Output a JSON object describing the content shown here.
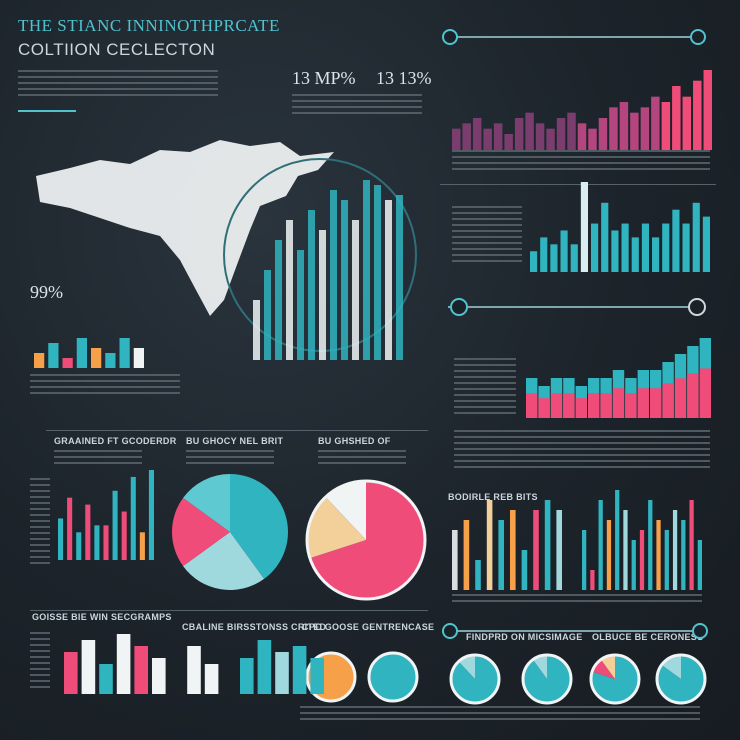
{
  "header": {
    "title_line1": "THE STIANC INNINOTHPRCATE",
    "title_line2": "COLTIION CECLECTON",
    "stat_left": "13 MP%",
    "stat_right": "13 13%",
    "stat_map": "99%"
  },
  "labels": {
    "mid_a": "GRAAINED FT GCODERDR",
    "mid_b": "BU GHOCY NEL BRIT",
    "mid_c": "BU GHSHED OF",
    "right_bars_title": "BODIRLE REB BITS",
    "bottom_a": "GOISSE BIE WIN SECGRAMPS",
    "bottom_b": "CBALINE BIRSSTONSS CRITED",
    "bottom_c": "CPC GOOSE GENTRENCASE",
    "bottom_d": "FINDPRD ON MICSIMAGE",
    "bottom_e": "OLBUCE BE CERONESS"
  },
  "colors": {
    "teal": "#2fb4c0",
    "pink": "#ef4c7a",
    "magenta": "#b4457f",
    "orange": "#f7a04a",
    "white": "#f0f4f5",
    "sand": "#f3cf9a"
  },
  "chart_data": [
    {
      "type": "bar",
      "values": [
        3,
        5,
        2,
        6,
        4,
        3,
        6,
        4
      ],
      "colors": [
        "#f7a04a",
        "#2fb4c0",
        "#ef4c7a",
        "#2fb4c0",
        "#f7a04a",
        "#2fb4c0",
        "#2fb4c0",
        "#f0f4f5"
      ]
    },
    {
      "type": "bar",
      "values": [
        4,
        5,
        6,
        4,
        5,
        3,
        6,
        7,
        5,
        4,
        6,
        7,
        5,
        4,
        6,
        8,
        9,
        7,
        8,
        10,
        9,
        12,
        10,
        13,
        15
      ]
    },
    {
      "type": "bar",
      "values": [
        3,
        5,
        4,
        6,
        4,
        13,
        7,
        10,
        6,
        7,
        5,
        7,
        5,
        7,
        9,
        7,
        10,
        8
      ]
    },
    {
      "type": "area",
      "values": [
        5,
        4,
        5,
        5,
        4,
        5,
        5,
        6,
        5,
        6,
        6,
        7,
        8,
        9,
        10
      ]
    },
    {
      "type": "bar",
      "values": [
        6,
        9,
        4,
        8,
        5,
        5,
        10,
        7,
        12,
        4,
        13
      ],
      "colors": [
        "#2fb4c0",
        "#ef4c7a",
        "#2fb4c0",
        "#ef4c7a",
        "#2fb4c0",
        "#ef4c7a",
        "#2fb4c0",
        "#ef4c7a",
        "#2fb4c0",
        "#f7a04a",
        "#2fb4c0"
      ]
    },
    {
      "type": "pie",
      "values": [
        40,
        25,
        20,
        15
      ],
      "colors": [
        "#2fb4c0",
        "#9fd9de",
        "#ef4c7a",
        "#5fc9d2"
      ]
    },
    {
      "type": "pie",
      "values": [
        70,
        18,
        12
      ],
      "colors": [
        "#ef4c7a",
        "#f3cf9a",
        "#f0f4f5"
      ]
    },
    {
      "type": "bar",
      "values": [
        6,
        7,
        3,
        9,
        7,
        8,
        4,
        8,
        9,
        8
      ]
    },
    {
      "type": "bar",
      "values": [
        6,
        2,
        9,
        7,
        10,
        8,
        5,
        6,
        9,
        7,
        6,
        8,
        7,
        9,
        5
      ]
    },
    {
      "type": "pie",
      "values": [
        100
      ],
      "colors": [
        "#f7a04a"
      ]
    },
    {
      "type": "pie",
      "values": [
        100
      ],
      "colors": [
        "#2fb4c0"
      ]
    },
    {
      "type": "pie",
      "values": [
        88,
        12
      ],
      "colors": [
        "#2fb4c0",
        "#9fd9de"
      ]
    },
    {
      "type": "pie",
      "values": [
        90,
        10
      ],
      "colors": [
        "#2fb4c0",
        "#9fd9de"
      ]
    },
    {
      "type": "pie",
      "values": [
        80,
        10,
        10
      ],
      "colors": [
        "#2fb4c0",
        "#ef4c7a",
        "#f3cf9a"
      ]
    },
    {
      "type": "pie",
      "values": [
        85,
        15
      ],
      "colors": [
        "#2fb4c0",
        "#9fd9de"
      ]
    }
  ]
}
